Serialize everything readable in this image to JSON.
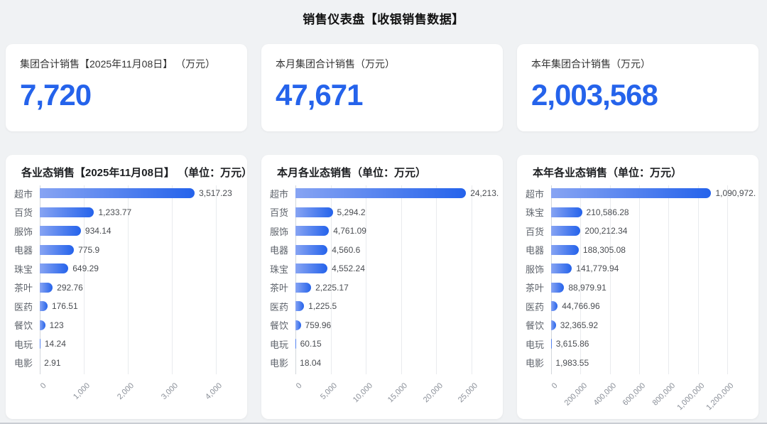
{
  "page": {
    "title": "销售仪表盘【收银销售数据】",
    "background": "#f0f2f4"
  },
  "colors": {
    "accent": "#2563eb",
    "bar_gradient_start": "#87a4f3",
    "bar_gradient_end": "#2563eb",
    "gridline": "#e9ebee",
    "axis_line": "#d3d7dc"
  },
  "kpi_cards": [
    {
      "label": "集团合计销售【2025年11月08日】 （万元）",
      "value": "7,720"
    },
    {
      "label": "本月集团合计销售（万元）",
      "value": "47,671"
    },
    {
      "label": "本年集团合计销售（万元）",
      "value": "2,003,568"
    }
  ],
  "chart_data": [
    {
      "type": "bar",
      "orientation": "horizontal",
      "title": "各业态销售【2025年11月08日】 （单位：万元）",
      "categories": [
        "超市",
        "百货",
        "服饰",
        "电器",
        "珠宝",
        "茶叶",
        "医药",
        "餐饮",
        "电玩",
        "电影"
      ],
      "values": [
        3517.23,
        1233.77,
        934.14,
        775.9,
        649.29,
        292.76,
        176.51,
        123,
        14.24,
        2.91
      ],
      "value_labels": [
        "3,517.23",
        "1,233.77",
        "934.14",
        "775.9",
        "649.29",
        "292.76",
        "176.51",
        "123",
        "14.24",
        "2.91"
      ],
      "xlabel": "",
      "ylabel": "",
      "xlim": [
        0,
        4000
      ],
      "x_ticks": [
        0,
        1000,
        2000,
        3000,
        4000
      ],
      "x_tick_labels": [
        "0",
        "1,000",
        "2,000",
        "3,000",
        "4,000"
      ],
      "grid": true,
      "legend": false
    },
    {
      "type": "bar",
      "orientation": "horizontal",
      "title": "本月各业态销售（单位：万元）",
      "categories": [
        "超市",
        "百货",
        "服饰",
        "电器",
        "珠宝",
        "茶叶",
        "医药",
        "餐饮",
        "电玩",
        "电影"
      ],
      "values": [
        24213,
        5294.2,
        4761.09,
        4560.6,
        4552.24,
        2225.17,
        1225.5,
        759.96,
        60.15,
        18.04
      ],
      "value_labels": [
        "24,213.",
        "5,294.2",
        "4,761.09",
        "4,560.6",
        "4,552.24",
        "2,225.17",
        "1,225.5",
        "759.96",
        "60.15",
        "18.04"
      ],
      "xlabel": "",
      "ylabel": "",
      "xlim": [
        0,
        25000
      ],
      "x_ticks": [
        0,
        5000,
        10000,
        15000,
        20000,
        25000
      ],
      "x_tick_labels": [
        "0",
        "5,000",
        "10,000",
        "15,000",
        "20,000",
        "25,000"
      ],
      "grid": true,
      "legend": false
    },
    {
      "type": "bar",
      "orientation": "horizontal",
      "title": "本年各业态销售（单位：万元）",
      "categories": [
        "超市",
        "珠宝",
        "百货",
        "电器",
        "服饰",
        "茶叶",
        "医药",
        "餐饮",
        "电玩",
        "电影"
      ],
      "values": [
        1090972,
        210586.28,
        200212.34,
        188305.08,
        141779.94,
        88979.91,
        44766.96,
        32365.92,
        3615.86,
        1983.55
      ],
      "value_labels": [
        "1,090,972.",
        "210,586.28",
        "200,212.34",
        "188,305.08",
        "141,779.94",
        "88,979.91",
        "44,766.96",
        "32,365.92",
        "3,615.86",
        "1,983.55"
      ],
      "xlabel": "",
      "ylabel": "",
      "xlim": [
        0,
        1200000
      ],
      "x_ticks": [
        0,
        200000,
        400000,
        600000,
        800000,
        1000000,
        1200000
      ],
      "x_tick_labels": [
        "0",
        "200,000",
        "400,000",
        "600,000",
        "800,000",
        "1,000,000",
        "1,200,000"
      ],
      "grid": true,
      "legend": false
    }
  ]
}
